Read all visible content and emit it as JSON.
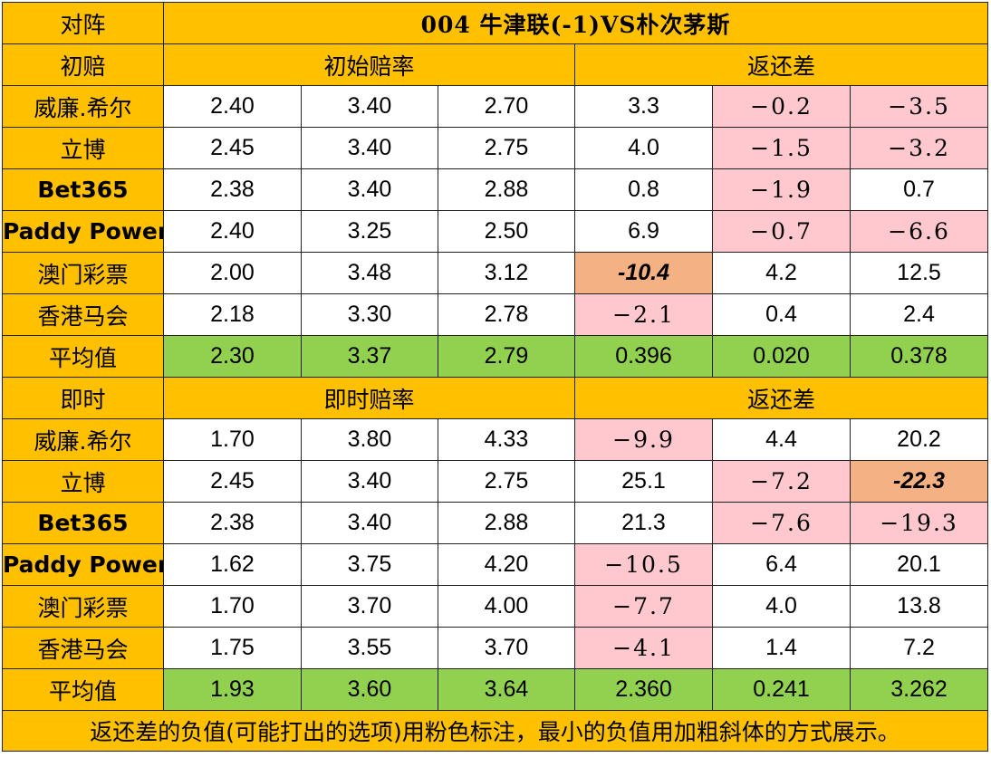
{
  "header": {
    "label": "对阵",
    "match": "004  牛津联(-1)VS朴次茅斯"
  },
  "initial": {
    "label": "初赔",
    "odds_title": "初始赔率",
    "return_title": "返还差",
    "rows": [
      {
        "bookmaker": "威廉.希尔",
        "small": false,
        "odds": [
          "2.40",
          "3.40",
          "2.70"
        ],
        "diff": [
          "3.3",
          "−0.2",
          "−3.5"
        ],
        "diff_style": [
          "white",
          "neg",
          "neg"
        ]
      },
      {
        "bookmaker": "立博",
        "small": false,
        "odds": [
          "2.45",
          "3.40",
          "2.75"
        ],
        "diff": [
          "4.0",
          "−1.5",
          "−3.2"
        ],
        "diff_style": [
          "white",
          "neg",
          "neg"
        ]
      },
      {
        "bookmaker": "Bet365",
        "small": true,
        "odds": [
          "2.38",
          "3.40",
          "2.88"
        ],
        "diff": [
          "0.8",
          "−1.9",
          "0.7"
        ],
        "diff_style": [
          "white",
          "neg",
          "white"
        ]
      },
      {
        "bookmaker": "Paddy Power",
        "small": true,
        "odds": [
          "2.40",
          "3.25",
          "2.50"
        ],
        "diff": [
          "6.9",
          "−0.7",
          "−6.6"
        ],
        "diff_style": [
          "white",
          "neg",
          "neg"
        ]
      },
      {
        "bookmaker": "澳门彩票",
        "small": false,
        "odds": [
          "2.00",
          "3.48",
          "3.12"
        ],
        "diff": [
          "-10.4",
          "4.2",
          "12.5"
        ],
        "diff_style": [
          "minneg",
          "white",
          "white"
        ]
      },
      {
        "bookmaker": "香港马会",
        "small": false,
        "odds": [
          "2.18",
          "3.30",
          "2.78"
        ],
        "diff": [
          "−2.1",
          "0.4",
          "2.4"
        ],
        "diff_style": [
          "neg",
          "white",
          "white"
        ]
      }
    ],
    "average": {
      "label": "平均值",
      "odds": [
        "2.30",
        "3.37",
        "2.79"
      ],
      "diff": [
        "0.396",
        "0.020",
        "0.378"
      ]
    }
  },
  "live": {
    "label": "即时",
    "odds_title": "即时赔率",
    "return_title": "返还差",
    "rows": [
      {
        "bookmaker": "威廉.希尔",
        "small": false,
        "odds": [
          "1.70",
          "3.80",
          "4.33"
        ],
        "diff": [
          "−9.9",
          "4.4",
          "20.2"
        ],
        "diff_style": [
          "neg",
          "white",
          "white"
        ]
      },
      {
        "bookmaker": "立博",
        "small": false,
        "odds": [
          "2.45",
          "3.40",
          "2.75"
        ],
        "diff": [
          "25.1",
          "−7.2",
          "-22.3"
        ],
        "diff_style": [
          "white",
          "neg",
          "minneg"
        ]
      },
      {
        "bookmaker": "Bet365",
        "small": true,
        "odds": [
          "2.38",
          "3.40",
          "2.88"
        ],
        "diff": [
          "21.3",
          "−7.6",
          "−19.3"
        ],
        "diff_style": [
          "white",
          "neg",
          "neg"
        ]
      },
      {
        "bookmaker": "Paddy Power",
        "small": true,
        "odds": [
          "1.62",
          "3.75",
          "4.20"
        ],
        "diff": [
          "−10.5",
          "6.4",
          "20.1"
        ],
        "diff_style": [
          "neg",
          "white",
          "white"
        ]
      },
      {
        "bookmaker": "澳门彩票",
        "small": false,
        "odds": [
          "1.70",
          "3.70",
          "4.00"
        ],
        "diff": [
          "−7.7",
          "4.0",
          "13.8"
        ],
        "diff_style": [
          "neg",
          "white",
          "white"
        ]
      },
      {
        "bookmaker": "香港马会",
        "small": false,
        "odds": [
          "1.75",
          "3.55",
          "3.70"
        ],
        "diff": [
          "−4.1",
          "1.4",
          "7.2"
        ],
        "diff_style": [
          "neg",
          "white",
          "white"
        ]
      }
    ],
    "average": {
      "label": "平均值",
      "odds": [
        "1.93",
        "3.60",
        "3.64"
      ],
      "diff": [
        "2.360",
        "0.241",
        "3.262"
      ]
    }
  },
  "footer": {
    "note": "返还差的负值(可能打出的选项)用粉色标注，最小的负值用加粗斜体的方式展示。"
  },
  "colors": {
    "header_orange": "#FFC000",
    "average_green": "#92D050",
    "negative_pink": "#FFC7CE",
    "min_negative_peach": "#F4B183",
    "negative_text_red": "#E00000"
  }
}
